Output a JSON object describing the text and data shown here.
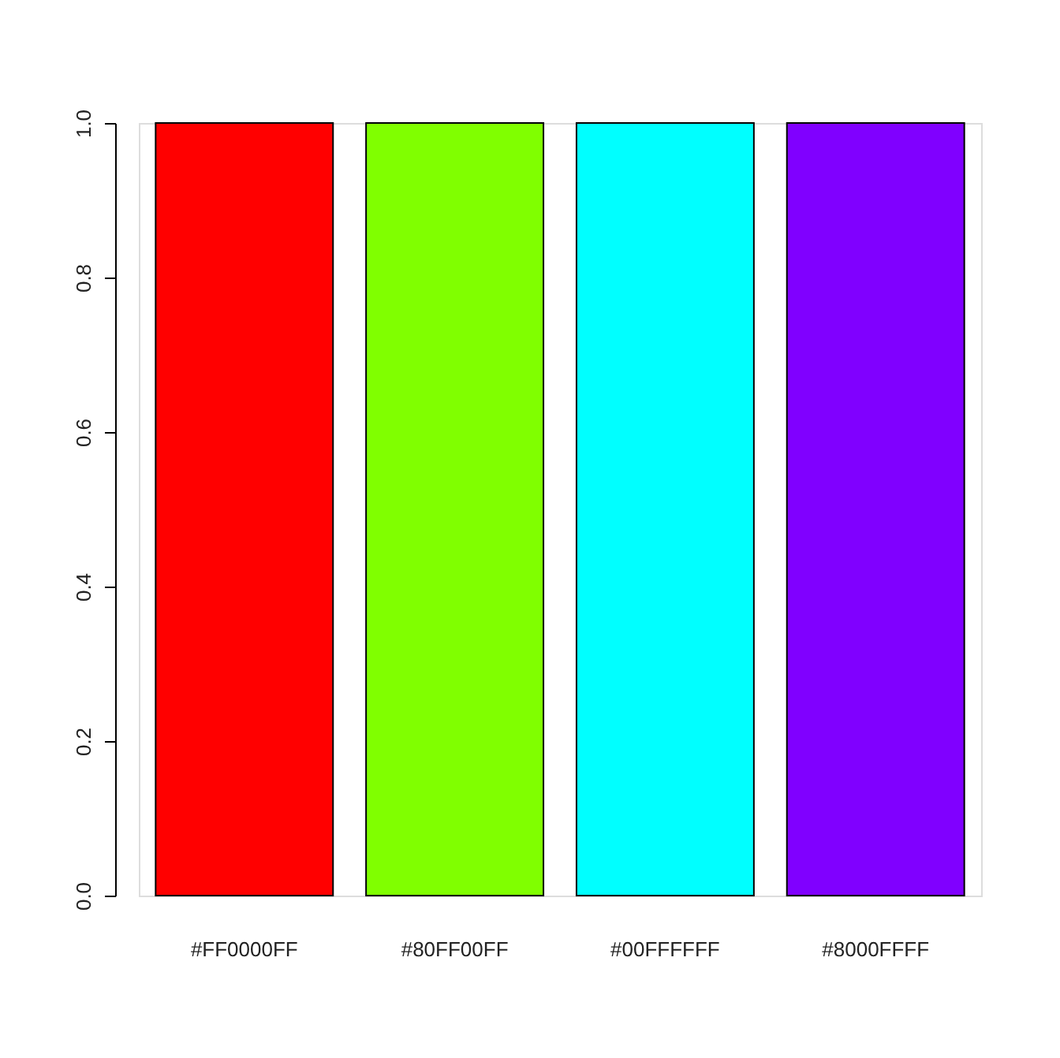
{
  "chart_data": {
    "type": "bar",
    "categories": [
      "#FF0000FF",
      "#80FF00FF",
      "#00FFFFFF",
      "#8000FFFF"
    ],
    "values": [
      1,
      1,
      1,
      1
    ],
    "colors": [
      "#ff0000",
      "#80ff00",
      "#00ffff",
      "#8000ff"
    ],
    "ylim": [
      0,
      1
    ],
    "yticks": [
      {
        "value": 0,
        "label": "0.0"
      },
      {
        "value": 0.2,
        "label": "0.2"
      },
      {
        "value": 0.4,
        "label": "0.4"
      },
      {
        "value": 0.6,
        "label": "0.6"
      },
      {
        "value": 0.8,
        "label": "0.8"
      },
      {
        "value": 1,
        "label": "1.0"
      }
    ],
    "grid": false
  }
}
